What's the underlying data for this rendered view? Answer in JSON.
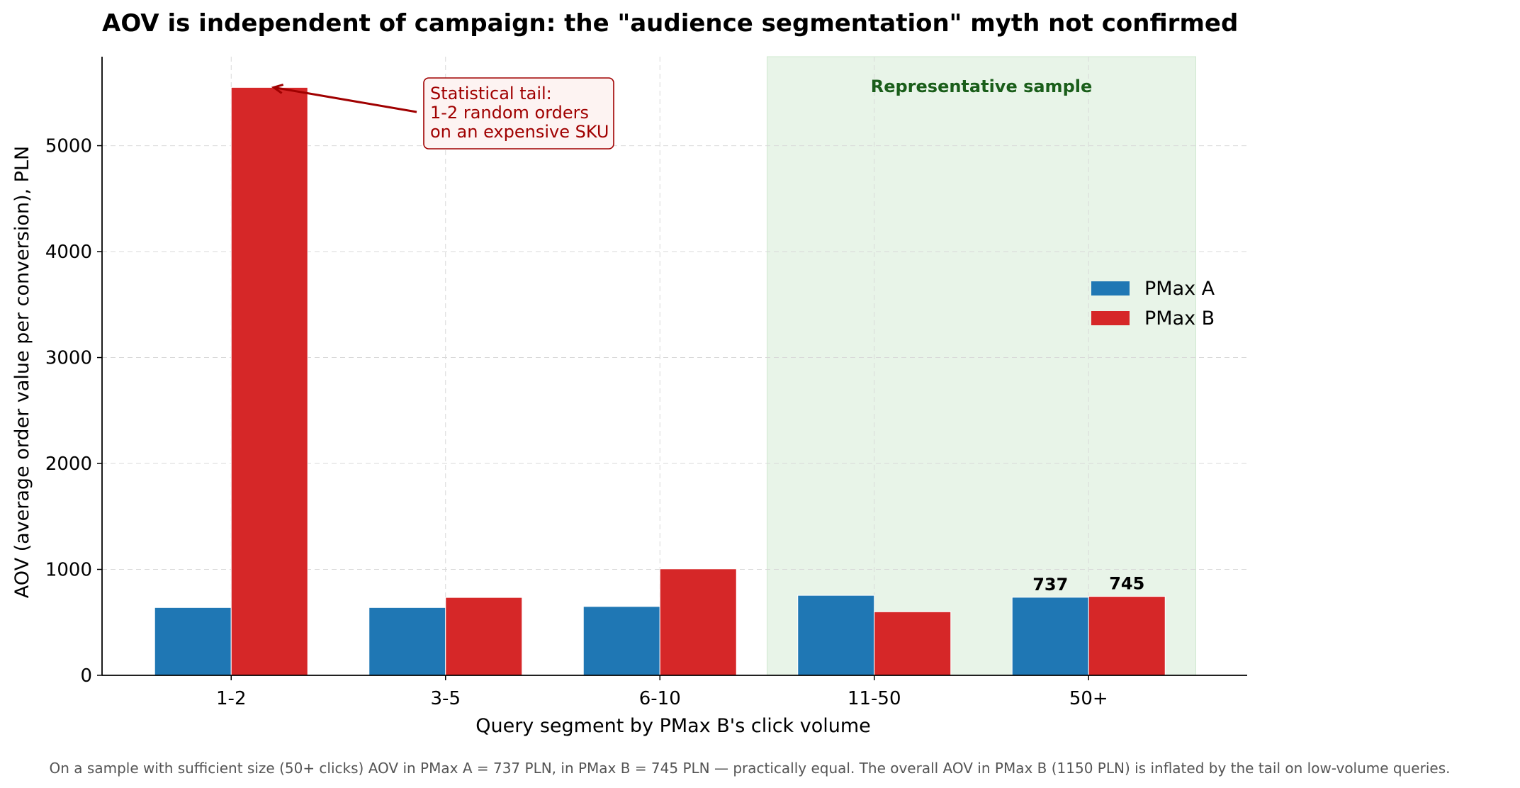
{
  "chart_data": {
    "type": "bar",
    "title": "AOV is independent of campaign: the \"audience segmentation\" myth not confirmed",
    "xlabel": "Query segment by PMax B's click volume",
    "ylabel": "AOV (average order value per conversion), PLN",
    "categories": [
      "1-2",
      "3-5",
      "6-10",
      "11-50",
      "50+"
    ],
    "series": [
      {
        "name": "PMax A",
        "color": "#1f77b4",
        "values": [
          640,
          640,
          650,
          755,
          737
        ]
      },
      {
        "name": "PMax B",
        "color": "#d62728",
        "values": [
          5550,
          735,
          1005,
          600,
          745
        ]
      }
    ],
    "ylim": [
      0,
      5840
    ],
    "yticks": [
      "0",
      "1000",
      "2000",
      "3000",
      "4000",
      "5000"
    ],
    "grid": true,
    "legend_placement": "center-right",
    "data_labels": [
      {
        "category": "50+",
        "series": "PMax A",
        "text": "737"
      },
      {
        "category": "50+",
        "series": "PMax B",
        "text": "745"
      }
    ],
    "shaded_region": {
      "label": "Representative sample",
      "from_category": "11-50",
      "to_category": "50+",
      "color": "#e8f4e8",
      "text_color": "#1a5e1a"
    },
    "annotation": {
      "lines": [
        "Statistical tail:",
        "1-2 random orders",
        "on an expensive SKU"
      ],
      "points_to": {
        "category": "1-2",
        "series": "PMax B"
      },
      "color": "#a00000",
      "box_fill": "#fdf3f2"
    },
    "footnote": "On a sample with sufficient size (50+ clicks) AOV in PMax A = 737 PLN, in PMax B = 745 PLN — practically equal.  The overall AOV in PMax B (1150 PLN) is inflated by the tail on low-volume queries."
  }
}
